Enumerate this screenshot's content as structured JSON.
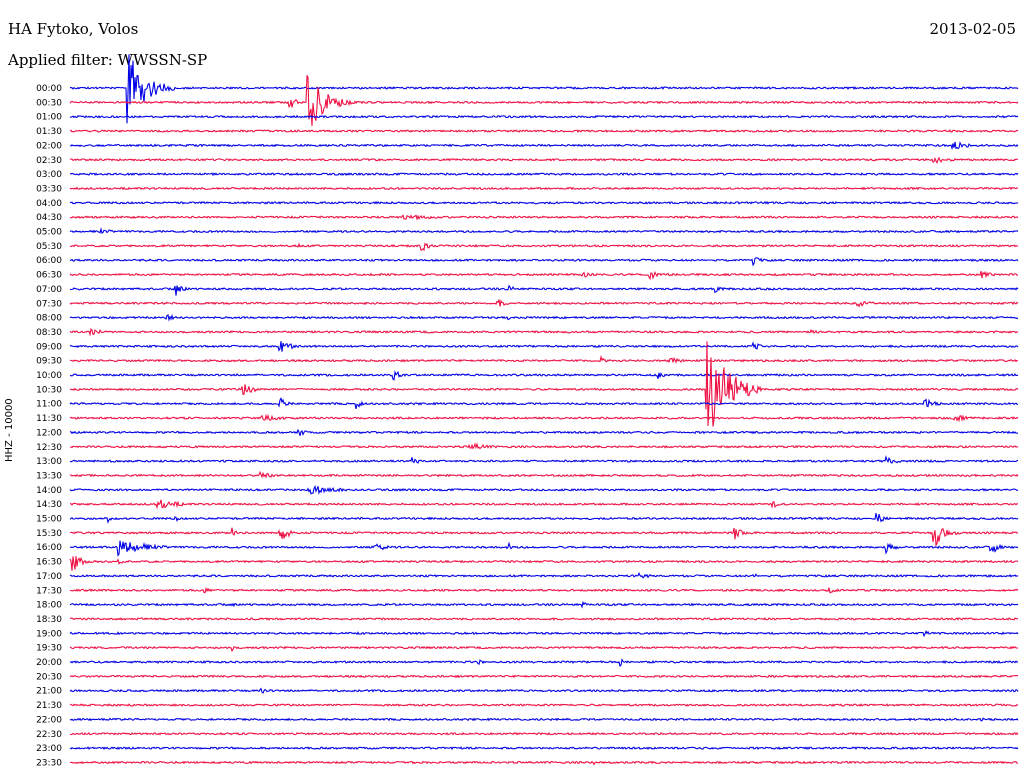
{
  "header": {
    "station": "HA Fytoko, Volos",
    "date": "2013-02-05",
    "filter_text": "Applied filter: WWSSN-SP",
    "channel": "HHZ - 10000"
  },
  "colors": {
    "blue_trace": "#0000e6",
    "red_trace": "#ee1144"
  },
  "chart_data": {
    "type": "line",
    "title": "HA Fytoko, Volos",
    "date": "2013-02-05",
    "ylabel": "HHZ - 10000",
    "x_range_minutes": [
      0,
      30
    ],
    "rows": [
      {
        "label": "00:00",
        "color": "blue",
        "events": [
          {
            "t": 0.06,
            "amp": 40,
            "dur": 0.05
          }
        ]
      },
      {
        "label": "00:30",
        "color": "red",
        "events": [
          {
            "t": 0.23,
            "amp": 10,
            "dur": 0.02
          },
          {
            "t": 0.25,
            "amp": 32,
            "dur": 0.05
          }
        ]
      },
      {
        "label": "01:00",
        "color": "blue",
        "events": []
      },
      {
        "label": "01:30",
        "color": "red",
        "events": []
      },
      {
        "label": "02:00",
        "color": "blue",
        "events": [
          {
            "t": 0.93,
            "amp": 5,
            "dur": 0.05
          }
        ]
      },
      {
        "label": "02:30",
        "color": "red",
        "events": [
          {
            "t": 0.91,
            "amp": 4,
            "dur": 0.05
          }
        ]
      },
      {
        "label": "03:00",
        "color": "blue",
        "events": []
      },
      {
        "label": "03:30",
        "color": "red",
        "events": []
      },
      {
        "label": "04:00",
        "color": "blue",
        "events": []
      },
      {
        "label": "04:30",
        "color": "red",
        "events": [
          {
            "t": 0.35,
            "amp": 3,
            "dur": 0.1
          }
        ]
      },
      {
        "label": "05:00",
        "color": "blue",
        "events": [
          {
            "t": 0.03,
            "amp": 3,
            "dur": 0.05
          }
        ]
      },
      {
        "label": "05:30",
        "color": "red",
        "events": [
          {
            "t": 0.24,
            "amp": 4,
            "dur": 0.01
          },
          {
            "t": 0.37,
            "amp": 9,
            "dur": 0.02
          }
        ]
      },
      {
        "label": "06:00",
        "color": "blue",
        "events": [
          {
            "t": 0.72,
            "amp": 6,
            "dur": 0.02
          }
        ]
      },
      {
        "label": "06:30",
        "color": "red",
        "events": [
          {
            "t": 0.54,
            "amp": 6,
            "dur": 0.02
          },
          {
            "t": 0.61,
            "amp": 8,
            "dur": 0.03
          },
          {
            "t": 0.96,
            "amp": 4,
            "dur": 0.04
          }
        ]
      },
      {
        "label": "07:00",
        "color": "blue",
        "events": [
          {
            "t": 0.11,
            "amp": 10,
            "dur": 0.02
          },
          {
            "t": 0.46,
            "amp": 5,
            "dur": 0.02
          },
          {
            "t": 0.68,
            "amp": 4,
            "dur": 0.02
          }
        ]
      },
      {
        "label": "07:30",
        "color": "red",
        "events": [
          {
            "t": 0.45,
            "amp": 6,
            "dur": 0.02
          },
          {
            "t": 0.83,
            "amp": 4,
            "dur": 0.04
          }
        ]
      },
      {
        "label": "08:00",
        "color": "blue",
        "events": [
          {
            "t": 0.1,
            "amp": 6,
            "dur": 0.02
          },
          {
            "t": 0.46,
            "amp": 4,
            "dur": 0.02
          }
        ]
      },
      {
        "label": "08:30",
        "color": "red",
        "events": [
          {
            "t": 0.02,
            "amp": 4,
            "dur": 0.04
          },
          {
            "t": 0.78,
            "amp": 3,
            "dur": 0.03
          }
        ]
      },
      {
        "label": "09:00",
        "color": "blue",
        "events": [
          {
            "t": 0.22,
            "amp": 8,
            "dur": 0.03
          },
          {
            "t": 0.72,
            "amp": 6,
            "dur": 0.02
          }
        ]
      },
      {
        "label": "09:30",
        "color": "red",
        "events": [
          {
            "t": 0.56,
            "amp": 5,
            "dur": 0.01
          },
          {
            "t": 0.63,
            "amp": 4,
            "dur": 0.04
          }
        ]
      },
      {
        "label": "10:00",
        "color": "blue",
        "events": [
          {
            "t": 0.34,
            "amp": 7,
            "dur": 0.02
          },
          {
            "t": 0.62,
            "amp": 4,
            "dur": 0.02
          }
        ]
      },
      {
        "label": "10:30",
        "color": "red",
        "events": [
          {
            "t": 0.18,
            "amp": 9,
            "dur": 0.03
          },
          {
            "t": 0.67,
            "amp": 60,
            "dur": 0.06
          }
        ]
      },
      {
        "label": "11:00",
        "color": "blue",
        "events": [
          {
            "t": 0.22,
            "amp": 8,
            "dur": 0.02
          },
          {
            "t": 0.3,
            "amp": 7,
            "dur": 0.02
          },
          {
            "t": 0.9,
            "amp": 6,
            "dur": 0.03
          }
        ]
      },
      {
        "label": "11:30",
        "color": "red",
        "events": [
          {
            "t": 0.2,
            "amp": 4,
            "dur": 0.06
          },
          {
            "t": 0.93,
            "amp": 4,
            "dur": 0.05
          }
        ]
      },
      {
        "label": "12:00",
        "color": "blue",
        "events": [
          {
            "t": 0.24,
            "amp": 5,
            "dur": 0.02
          }
        ]
      },
      {
        "label": "12:30",
        "color": "red",
        "events": [
          {
            "t": 0.42,
            "amp": 4,
            "dur": 0.06
          }
        ]
      },
      {
        "label": "13:00",
        "color": "blue",
        "events": [
          {
            "t": 0.36,
            "amp": 7,
            "dur": 0.02
          },
          {
            "t": 0.86,
            "amp": 5,
            "dur": 0.03
          }
        ]
      },
      {
        "label": "13:30",
        "color": "red",
        "events": [
          {
            "t": 0.2,
            "amp": 4,
            "dur": 0.04
          }
        ]
      },
      {
        "label": "14:00",
        "color": "blue",
        "events": [
          {
            "t": 0.25,
            "amp": 6,
            "dur": 0.07
          }
        ]
      },
      {
        "label": "14:30",
        "color": "red",
        "events": [
          {
            "t": 0.09,
            "amp": 6,
            "dur": 0.06
          },
          {
            "t": 0.74,
            "amp": 5,
            "dur": 0.02
          }
        ]
      },
      {
        "label": "15:00",
        "color": "blue",
        "events": [
          {
            "t": 0.04,
            "amp": 6,
            "dur": 0.01
          },
          {
            "t": 0.11,
            "amp": 5,
            "dur": 0.01
          },
          {
            "t": 0.85,
            "amp": 7,
            "dur": 0.02
          }
        ]
      },
      {
        "label": "15:30",
        "color": "red",
        "events": [
          {
            "t": 0.17,
            "amp": 9,
            "dur": 0.01
          },
          {
            "t": 0.22,
            "amp": 10,
            "dur": 0.03
          },
          {
            "t": 0.7,
            "amp": 8,
            "dur": 0.02
          },
          {
            "t": 0.91,
            "amp": 20,
            "dur": 0.03
          }
        ]
      },
      {
        "label": "16:00",
        "color": "blue",
        "events": [
          {
            "t": 0.05,
            "amp": 9,
            "dur": 0.08
          },
          {
            "t": 0.32,
            "amp": 6,
            "dur": 0.03
          },
          {
            "t": 0.46,
            "amp": 10,
            "dur": 0.01
          },
          {
            "t": 0.86,
            "amp": 8,
            "dur": 0.02
          },
          {
            "t": 0.97,
            "amp": 10,
            "dur": 0.02
          }
        ]
      },
      {
        "label": "16:30",
        "color": "red",
        "events": [
          {
            "t": 0.0,
            "amp": 18,
            "dur": 0.02
          },
          {
            "t": 0.05,
            "amp": 4,
            "dur": 0.02
          }
        ]
      },
      {
        "label": "17:00",
        "color": "blue",
        "events": [
          {
            "t": 0.6,
            "amp": 3,
            "dur": 0.04
          },
          {
            "t": 0.72,
            "amp": 3,
            "dur": 0.02
          }
        ]
      },
      {
        "label": "17:30",
        "color": "red",
        "events": [
          {
            "t": 0.14,
            "amp": 3,
            "dur": 0.03
          },
          {
            "t": 0.8,
            "amp": 3,
            "dur": 0.03
          }
        ]
      },
      {
        "label": "18:00",
        "color": "blue",
        "events": [
          {
            "t": 0.17,
            "amp": 3,
            "dur": 0.02
          },
          {
            "t": 0.54,
            "amp": 3,
            "dur": 0.02
          }
        ]
      },
      {
        "label": "18:30",
        "color": "red",
        "events": []
      },
      {
        "label": "19:00",
        "color": "blue",
        "events": [
          {
            "t": 0.9,
            "amp": 3,
            "dur": 0.02
          }
        ]
      },
      {
        "label": "19:30",
        "color": "red",
        "events": [
          {
            "t": 0.17,
            "amp": 5,
            "dur": 0.01
          }
        ]
      },
      {
        "label": "20:00",
        "color": "blue",
        "events": [
          {
            "t": 0.43,
            "amp": 3,
            "dur": 0.02
          },
          {
            "t": 0.58,
            "amp": 5,
            "dur": 0.01
          }
        ]
      },
      {
        "label": "20:30",
        "color": "red",
        "events": []
      },
      {
        "label": "21:00",
        "color": "blue",
        "events": [
          {
            "t": 0.2,
            "amp": 5,
            "dur": 0.02
          }
        ]
      },
      {
        "label": "21:30",
        "color": "red",
        "events": []
      },
      {
        "label": "22:00",
        "color": "blue",
        "events": [
          {
            "t": 0.96,
            "amp": 3,
            "dur": 0.01
          }
        ]
      },
      {
        "label": "22:30",
        "color": "red",
        "events": []
      },
      {
        "label": "23:00",
        "color": "blue",
        "events": []
      },
      {
        "label": "23:30",
        "color": "red",
        "events": [
          {
            "t": 0.55,
            "amp": 3,
            "dur": 0.02
          }
        ]
      }
    ]
  }
}
